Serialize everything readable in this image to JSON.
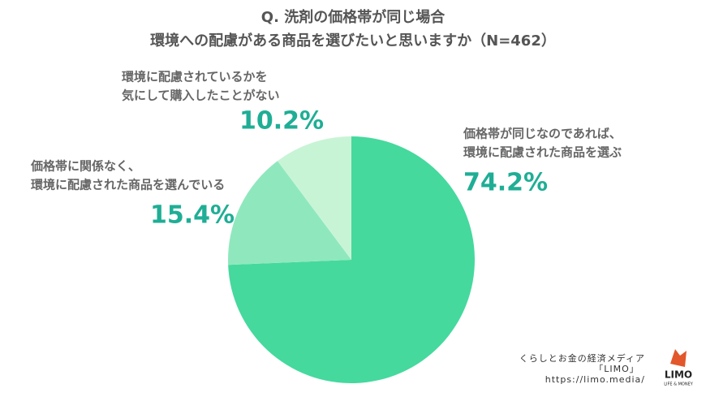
{
  "chart_data": {
    "type": "pie",
    "title": [
      "Q. 洗剤の価格帯が同じ場合",
      "環境への配慮がある商品を選びたいと思いますか（N=462）"
    ],
    "categories": [
      [
        "価格帯が同じなのであれば、",
        "環境に配慮された商品を選ぶ"
      ],
      [
        "価格帯に関係なく、",
        "環境に配慮された商品を選んでいる"
      ],
      [
        "環境に配慮されているかを",
        "気にして購入したことがない"
      ]
    ],
    "values": [
      74.2,
      15.4,
      10.2
    ],
    "value_labels": [
      "74.2%",
      "15.4%",
      "10.2%"
    ],
    "colors": [
      "#45d99d",
      "#8fe8bd",
      "#c8f4d6"
    ]
  },
  "footer": {
    "lines": [
      "くらしとお金の経済メディア",
      "「LIMO」",
      "https://limo.media/"
    ],
    "logo": "LIMO",
    "logo_sub": "LIFE & MONEY"
  }
}
